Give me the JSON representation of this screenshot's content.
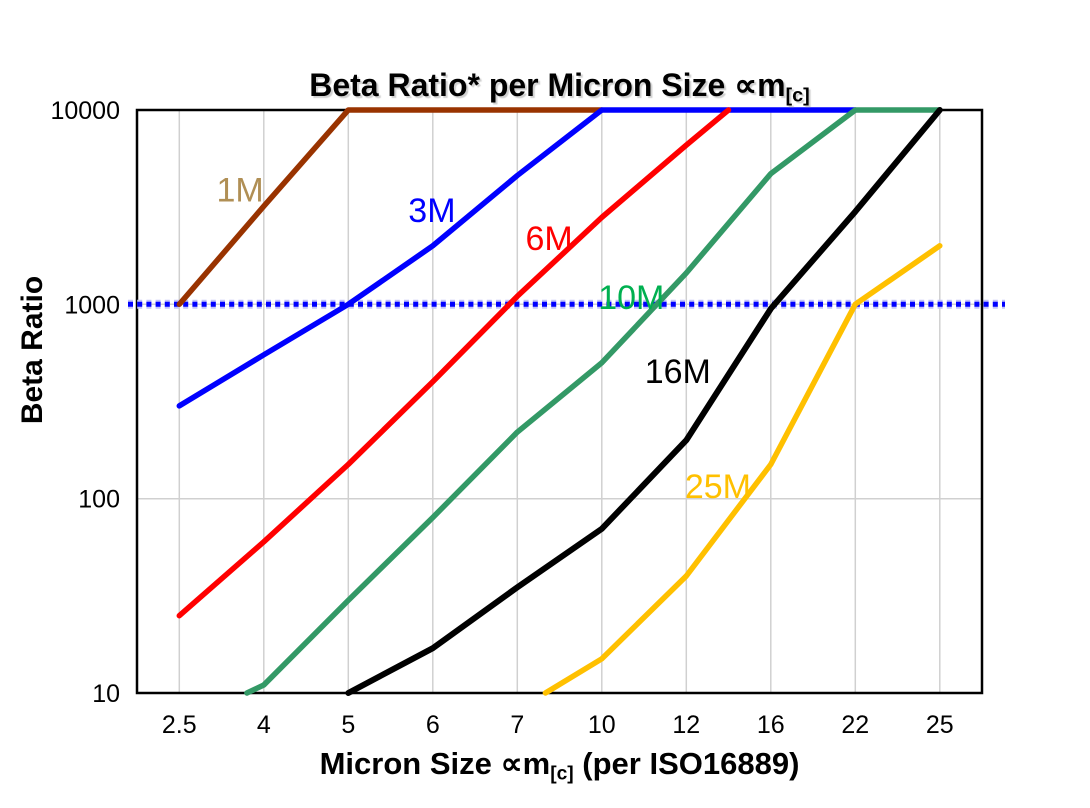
{
  "texts": {
    "title_main": "Beta Ratio* per Micron Size ∝m",
    "title_sub": "[c]",
    "xlabel_main": "Micron Size ∝m",
    "xlabel_sub": "[c]",
    "xlabel_tail": " (per ISO16889)",
    "ylabel": "Beta Ratio"
  },
  "chart_data": {
    "type": "line",
    "title": "Beta Ratio* per Micron Size ∝m[c]",
    "xlabel": "Micron Size ∝m[c] (per ISO16889)",
    "ylabel": "Beta Ratio",
    "x_categories": [
      2.5,
      4,
      5,
      6,
      7,
      10,
      12,
      16,
      22,
      25
    ],
    "x_tick_labels": [
      "2.5",
      "4",
      "5",
      "6",
      "7",
      "10",
      "12",
      "16",
      "22",
      "25"
    ],
    "y_scale": "log",
    "ylim": [
      10,
      10000
    ],
    "y_ticks": [
      10,
      100,
      1000,
      10000
    ],
    "y_tick_labels": [
      "10",
      "100",
      "1000",
      "10000"
    ],
    "grid": true,
    "gridline_color": "#D0D0D0",
    "axis_color": "#000000",
    "legend_position": "inline-labels",
    "reference_line": {
      "y": 1000,
      "color": "#0000FF",
      "halo_color": "#C4C4F8",
      "style": "dotted"
    },
    "series": [
      {
        "name": "1M",
        "color": "#993300",
        "label_color": "#B08F55",
        "label_pos": [
          3.58,
          3900
        ],
        "points": [
          [
            2.5,
            1000
          ],
          [
            4,
            3200
          ],
          [
            5,
            10000
          ],
          [
            10,
            10000
          ]
        ]
      },
      {
        "name": "3M",
        "color": "#0000FF",
        "label_color": "#0000FF",
        "label_pos": [
          5.99,
          3050
        ],
        "points": [
          [
            2.5,
            300
          ],
          [
            4,
            550
          ],
          [
            5,
            1000
          ],
          [
            6,
            2000
          ],
          [
            7,
            4600
          ],
          [
            10,
            10000
          ],
          [
            22,
            10000
          ]
        ]
      },
      {
        "name": "6M",
        "color": "#FF0000",
        "label_color": "#FF0000",
        "label_pos": [
          8.13,
          2200
        ],
        "points": [
          [
            2.5,
            25
          ],
          [
            4,
            60
          ],
          [
            5,
            150
          ],
          [
            6,
            400
          ],
          [
            7,
            1100
          ],
          [
            10,
            2800
          ],
          [
            12,
            6600
          ],
          [
            14,
            10000
          ]
        ]
      },
      {
        "name": "10M",
        "color": "#339966",
        "label_color": "#00B050",
        "label_pos": [
          10.7,
          1090
        ],
        "points": [
          [
            3.7,
            10
          ],
          [
            4,
            11
          ],
          [
            5,
            30
          ],
          [
            6,
            80
          ],
          [
            7,
            220
          ],
          [
            10,
            500
          ],
          [
            12,
            1450
          ],
          [
            16,
            4700
          ],
          [
            22,
            10000
          ],
          [
            25,
            10000
          ]
        ]
      },
      {
        "name": "16M",
        "color": "#000000",
        "label_color": "#000000",
        "label_pos": [
          11.8,
          455
        ],
        "points": [
          [
            5,
            10
          ],
          [
            6,
            17
          ],
          [
            7,
            35
          ],
          [
            10,
            70
          ],
          [
            12,
            200
          ],
          [
            16,
            950
          ],
          [
            22,
            3000
          ],
          [
            25,
            10000
          ]
        ]
      },
      {
        "name": "25M",
        "color": "#FFC000",
        "label_color": "#FFC000",
        "label_pos": [
          13.5,
          116
        ],
        "points": [
          [
            8,
            10
          ],
          [
            10,
            15
          ],
          [
            12,
            40
          ],
          [
            16,
            150
          ],
          [
            22,
            1000
          ],
          [
            25,
            2000
          ]
        ]
      }
    ]
  }
}
